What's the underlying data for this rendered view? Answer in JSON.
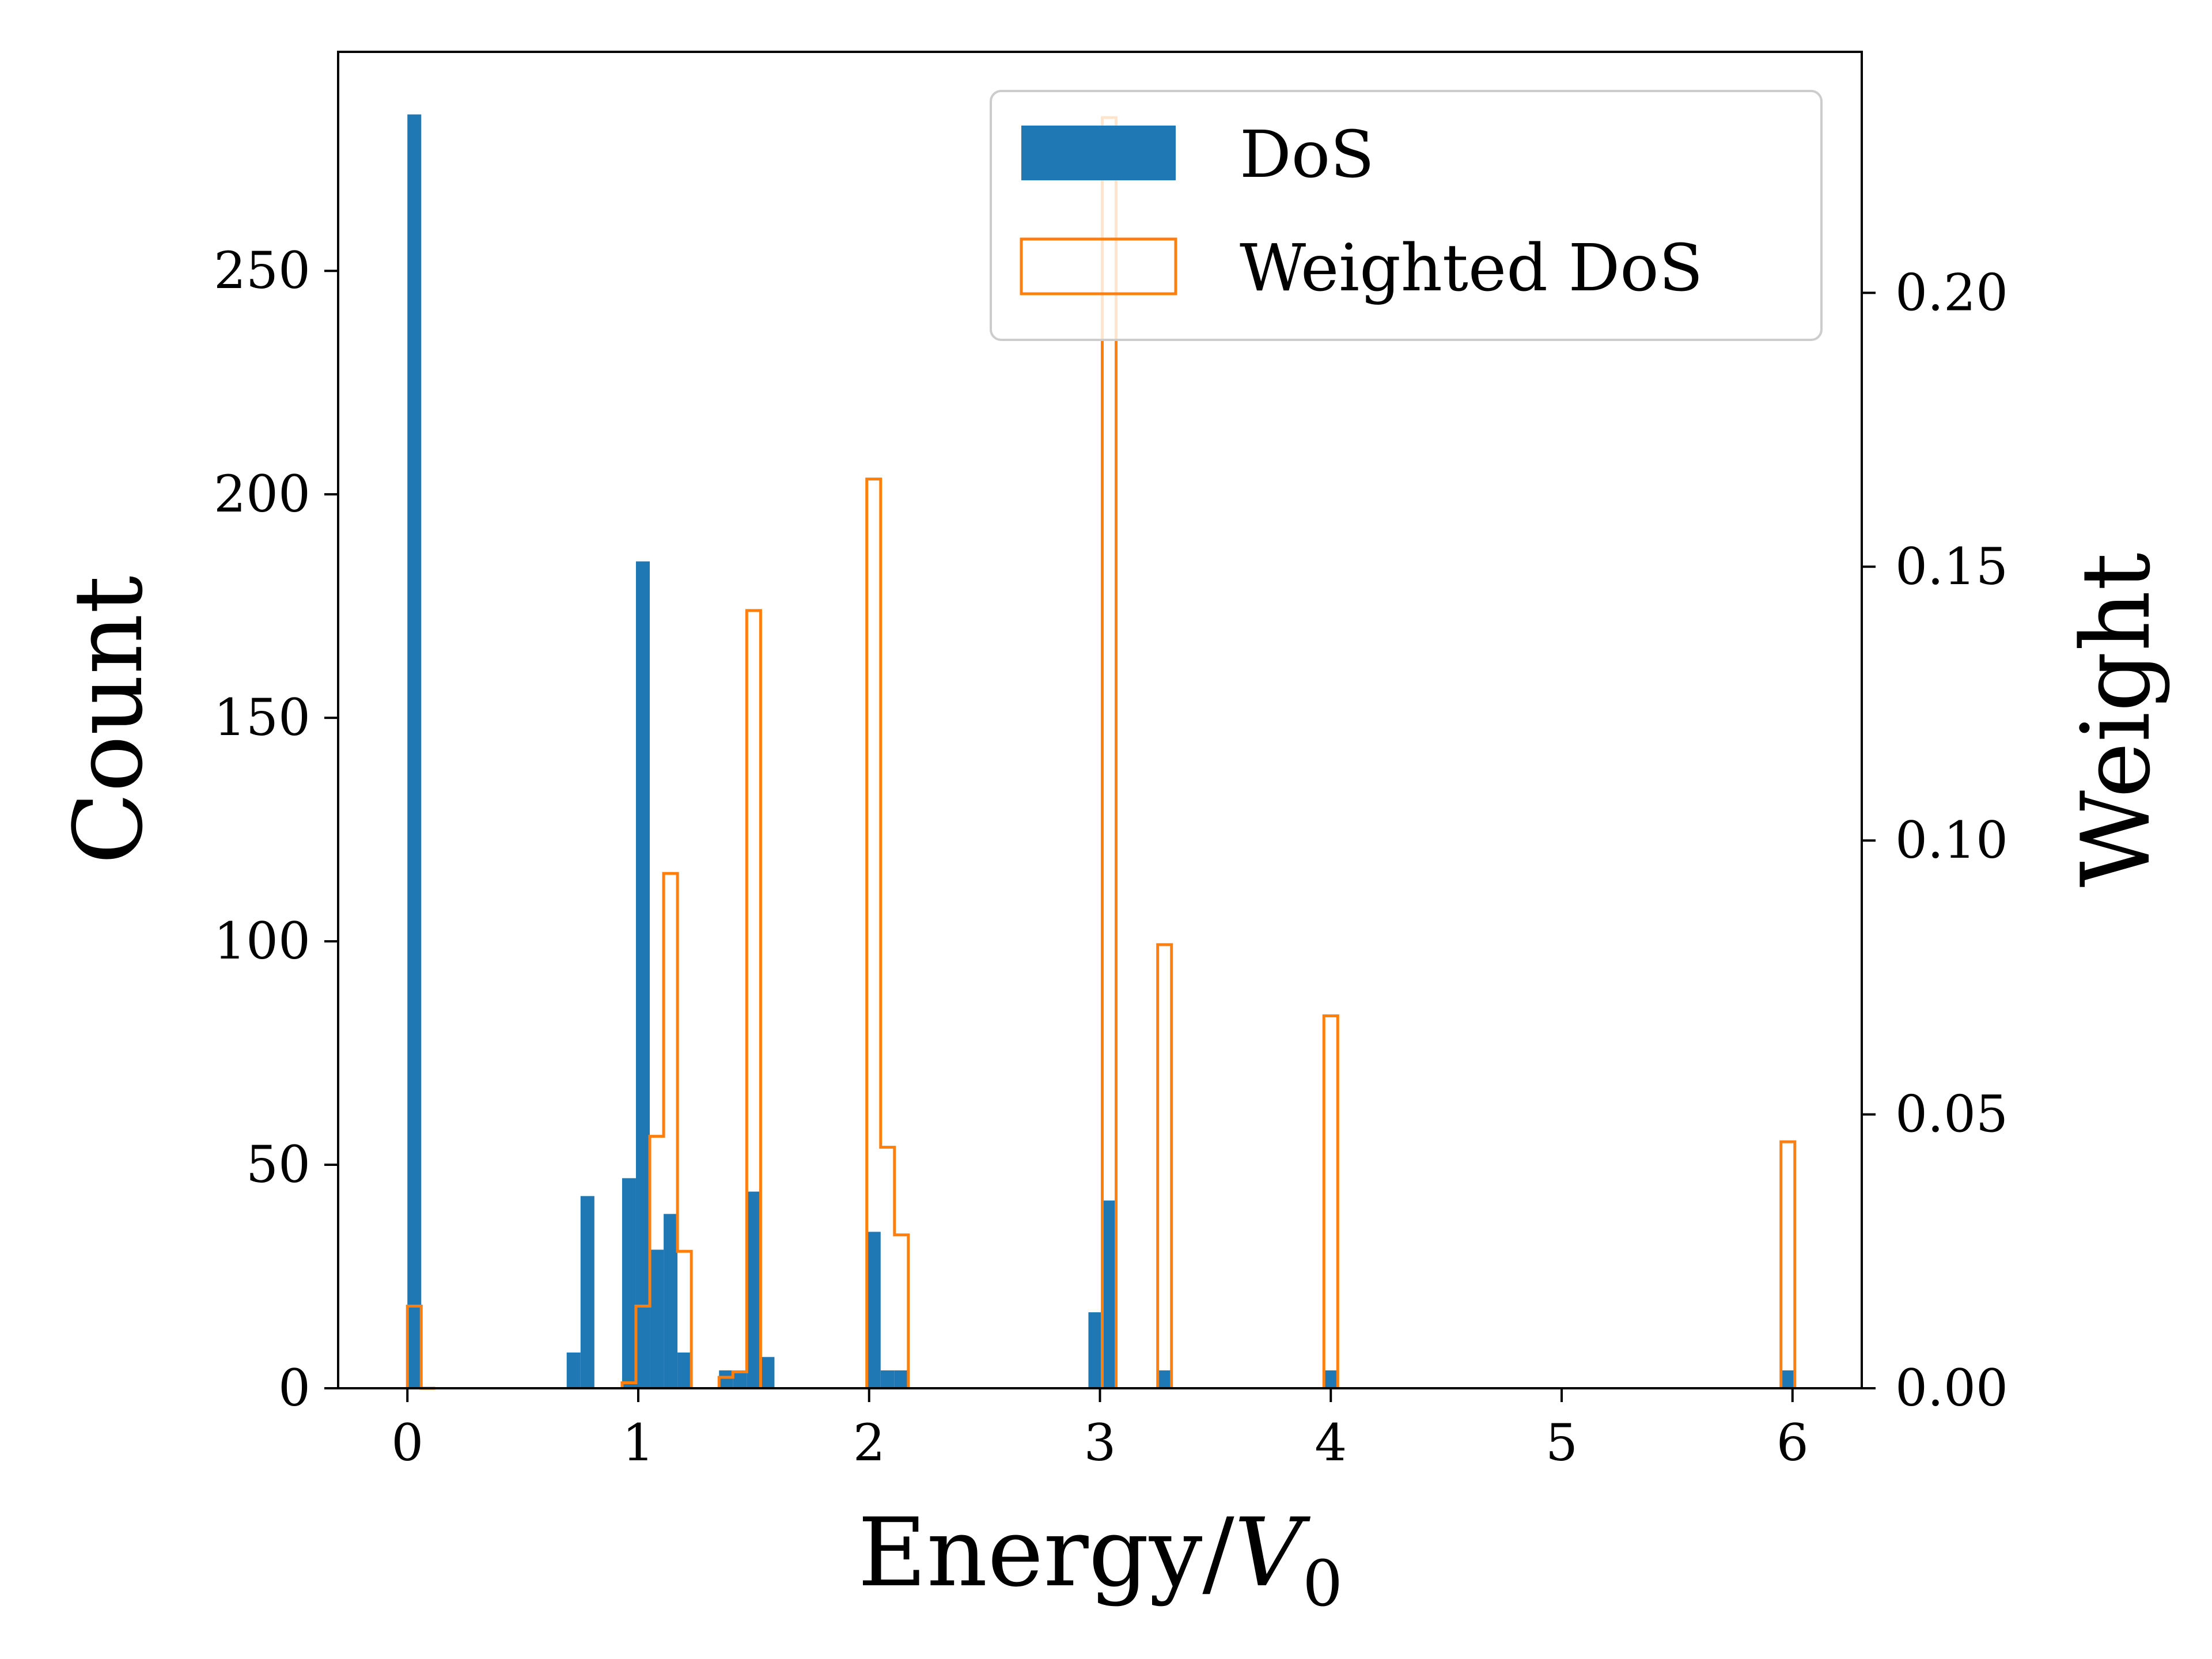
{
  "colors": {
    "dos": "#1f77b4",
    "weighted": "#ff7f0e",
    "axis": "#000000",
    "legend_border": "#cccccc",
    "background": "#ffffff"
  },
  "chart_data": {
    "type": "bar",
    "title": "",
    "xlabel_main": "Energy/",
    "xlabel_var": "V",
    "xlabel_sub": "0",
    "ylabel_left": "Count",
    "ylabel_right": "Weight",
    "xlim": [
      -0.3,
      6.3
    ],
    "ylim_left": [
      0,
      299
    ],
    "ylim_right": [
      0,
      0.244
    ],
    "bin_width": 0.06,
    "x_ticks": [
      0,
      1,
      2,
      3,
      4,
      5,
      6
    ],
    "x_tick_labels": [
      "0",
      "1",
      "2",
      "3",
      "4",
      "5",
      "6"
    ],
    "y_left_ticks": [
      0,
      50,
      100,
      150,
      200,
      250
    ],
    "y_left_tick_labels": [
      "0",
      "50",
      "100",
      "150",
      "200",
      "250"
    ],
    "y_right_ticks": [
      0,
      0.05,
      0.1,
      0.15,
      0.2
    ],
    "y_right_tick_labels": [
      "0.00",
      "0.05",
      "0.10",
      "0.15",
      "0.20"
    ],
    "legend": {
      "position": "upper-right",
      "entries": [
        "DoS",
        "Weighted DoS"
      ]
    },
    "series": [
      {
        "name": "DoS",
        "style": "filled-bar",
        "axis": "left",
        "bins": [
          {
            "x": 0.0,
            "value": 285
          },
          {
            "x": 0.06,
            "value": 0
          },
          {
            "x": 0.69,
            "value": 8
          },
          {
            "x": 0.75,
            "value": 43
          },
          {
            "x": 0.93,
            "value": 47
          },
          {
            "x": 0.99,
            "value": 185
          },
          {
            "x": 1.05,
            "value": 31
          },
          {
            "x": 1.11,
            "value": 39
          },
          {
            "x": 1.17,
            "value": 8
          },
          {
            "x": 1.35,
            "value": 4
          },
          {
            "x": 1.41,
            "value": 4
          },
          {
            "x": 1.47,
            "value": 44
          },
          {
            "x": 1.53,
            "value": 7
          },
          {
            "x": 1.99,
            "value": 35
          },
          {
            "x": 2.05,
            "value": 4
          },
          {
            "x": 2.11,
            "value": 4
          },
          {
            "x": 2.95,
            "value": 17
          },
          {
            "x": 3.01,
            "value": 42
          },
          {
            "x": 3.25,
            "value": 4
          },
          {
            "x": 3.97,
            "value": 4
          },
          {
            "x": 5.95,
            "value": 4
          }
        ]
      },
      {
        "name": "Weighted DoS",
        "style": "step-outline",
        "axis": "right",
        "bins": [
          {
            "x": 0.0,
            "value": 0.015
          },
          {
            "x": 0.06,
            "value": 0
          },
          {
            "x": 0.93,
            "value": 0.001
          },
          {
            "x": 0.99,
            "value": 0.015
          },
          {
            "x": 1.05,
            "value": 0.046
          },
          {
            "x": 1.11,
            "value": 0.094
          },
          {
            "x": 1.17,
            "value": 0.025
          },
          {
            "x": 1.35,
            "value": 0.002
          },
          {
            "x": 1.41,
            "value": 0.003
          },
          {
            "x": 1.47,
            "value": 0.142
          },
          {
            "x": 1.99,
            "value": 0.166
          },
          {
            "x": 2.05,
            "value": 0.044
          },
          {
            "x": 2.11,
            "value": 0.028
          },
          {
            "x": 3.01,
            "value": 0.232
          },
          {
            "x": 3.25,
            "value": 0.081
          },
          {
            "x": 3.97,
            "value": 0.068
          },
          {
            "x": 5.95,
            "value": 0.045
          }
        ]
      }
    ]
  }
}
